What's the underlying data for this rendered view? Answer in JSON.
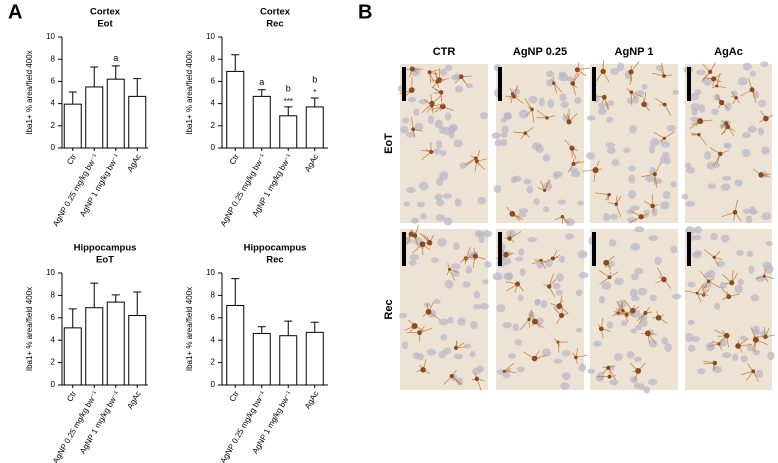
{
  "panel_a": {
    "label": "A"
  },
  "chart_data": [
    {
      "type": "bar",
      "title": "Cortex",
      "subtitle": "Eot",
      "y_label": "Iba1+ % area/field 400x",
      "categories": [
        "Ctr",
        "AgNP 0.25 mg/kg bw⁻¹",
        "AgNP 1 mg/kg bw⁻¹",
        "AgAc"
      ],
      "values": [
        3.95,
        5.5,
        6.2,
        4.65
      ],
      "errors": [
        1.1,
        1.8,
        1.2,
        1.6
      ],
      "letters": [
        null,
        null,
        "a",
        null
      ],
      "stars": [
        null,
        null,
        null,
        null
      ],
      "color": "#ffffff",
      "ylim": [
        0,
        10
      ],
      "yticks": [
        0,
        2,
        4,
        6,
        8,
        10
      ]
    },
    {
      "type": "bar",
      "title": "Cortex",
      "subtitle": "Rec",
      "y_label": "Iba1+ % area/field 400x",
      "categories": [
        "Ctr",
        "AgNP 0.25 mg/kg bw⁻¹",
        "AgNP 1 mg/kg bw⁻¹",
        "AgAc"
      ],
      "values": [
        6.9,
        4.65,
        2.9,
        3.7
      ],
      "errors": [
        1.5,
        0.6,
        0.8,
        0.8
      ],
      "letters": [
        null,
        "a",
        "b",
        "b"
      ],
      "stars": [
        null,
        null,
        "***",
        "*"
      ],
      "color": "#ffffff",
      "ylim": [
        0,
        10
      ],
      "yticks": [
        0,
        2,
        4,
        6,
        8,
        10
      ]
    },
    {
      "type": "bar",
      "title": "Hippocampus",
      "subtitle": "EoT",
      "y_label": "Iba1+ % area/field 400x",
      "categories": [
        "Ctr",
        "AgNP 0.25 mg/kg bw⁻¹",
        "AgNP 1 mg/kg bw⁻¹",
        "AgAc"
      ],
      "values": [
        5.1,
        6.9,
        7.4,
        6.2
      ],
      "errors": [
        1.7,
        2.2,
        0.65,
        2.1
      ],
      "letters": [
        null,
        null,
        null,
        null
      ],
      "stars": [
        null,
        null,
        null,
        null
      ],
      "color": "#ffffff",
      "ylim": [
        0,
        10
      ],
      "yticks": [
        0,
        2,
        4,
        6,
        8,
        10
      ]
    },
    {
      "type": "bar",
      "title": "Hippocampus",
      "subtitle": "Rec",
      "y_label": "Iba1+ % area/field 400x",
      "categories": [
        "Ctr",
        "AgNP 0.25 mg/kg bw⁻¹",
        "AgNP 1 mg/kg bw⁻¹",
        "AgAc"
      ],
      "values": [
        7.1,
        4.6,
        4.4,
        4.7
      ],
      "errors": [
        2.4,
        0.6,
        1.3,
        0.9
      ],
      "letters": [
        null,
        null,
        null,
        null
      ],
      "stars": [
        null,
        null,
        null,
        null
      ],
      "color": "#ffffff",
      "ylim": [
        0,
        10
      ],
      "yticks": [
        0,
        2,
        4,
        6,
        8,
        10
      ]
    }
  ],
  "panel_b": {
    "label": "B",
    "columns": [
      "CTR",
      "AgNP 0.25",
      "AgNP 1",
      "AgAc"
    ],
    "rows": [
      "EoT",
      "Rec"
    ]
  }
}
